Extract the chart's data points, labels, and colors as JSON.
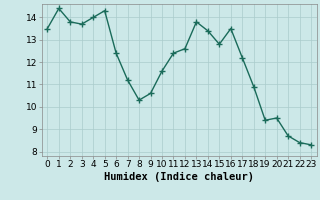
{
  "x": [
    0,
    1,
    2,
    3,
    4,
    5,
    6,
    7,
    8,
    9,
    10,
    11,
    12,
    13,
    14,
    15,
    16,
    17,
    18,
    19,
    20,
    21,
    22,
    23
  ],
  "y": [
    13.5,
    14.4,
    13.8,
    13.7,
    14.0,
    14.3,
    12.4,
    11.2,
    10.3,
    10.6,
    11.6,
    12.4,
    12.6,
    13.8,
    13.4,
    12.8,
    13.5,
    12.2,
    10.9,
    9.4,
    9.5,
    8.7,
    8.4,
    8.3
  ],
  "line_color": "#1a6b5a",
  "marker": "+",
  "marker_size": 4,
  "marker_edge_width": 1.0,
  "bg_color": "#cce8e8",
  "grid_color": "#aacccc",
  "grid_pink_color": "#ddb8b8",
  "xlabel": "Humidex (Indice chaleur)",
  "ylim": [
    7.8,
    14.6
  ],
  "xlim": [
    -0.5,
    23.5
  ],
  "yticks": [
    8,
    9,
    10,
    11,
    12,
    13,
    14
  ],
  "xticks": [
    0,
    1,
    2,
    3,
    4,
    5,
    6,
    7,
    8,
    9,
    10,
    11,
    12,
    13,
    14,
    15,
    16,
    17,
    18,
    19,
    20,
    21,
    22,
    23
  ],
  "tick_fontsize": 6.5,
  "xlabel_fontsize": 7.5,
  "linewidth": 1.0
}
